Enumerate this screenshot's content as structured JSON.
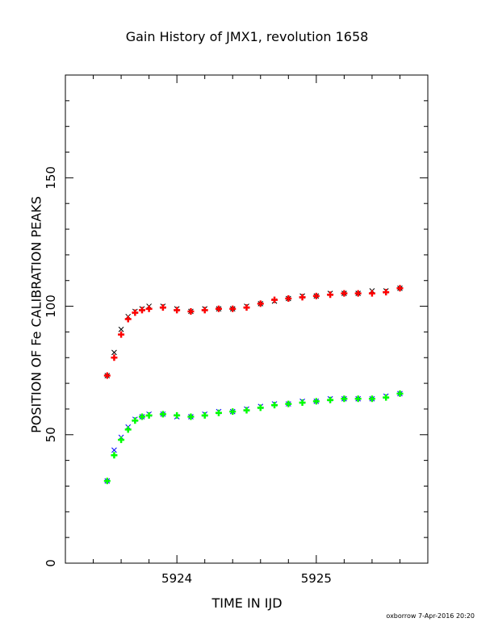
{
  "chart_data": {
    "type": "scatter",
    "title": "Gain History of JMX1, revolution 1658",
    "xlabel": "TIME IN IJD",
    "ylabel": "POSITION OF Fe CALIBRATION PEAKS",
    "xlim": [
      5923.2,
      5925.8
    ],
    "ylim": [
      0,
      190
    ],
    "x_ticks": [
      5924,
      5925
    ],
    "y_ticks": [
      0,
      50,
      100,
      150
    ],
    "grid": false,
    "series": [
      {
        "marker": "x",
        "color": "#000000",
        "x": [
          5923.5,
          5923.55,
          5923.6,
          5923.65,
          5923.7,
          5923.75,
          5923.8,
          5923.9,
          5924.0,
          5924.1,
          5924.2,
          5924.3,
          5924.4,
          5924.5,
          5924.6,
          5924.7,
          5924.8,
          5924.9,
          5925.0,
          5925.1,
          5925.2,
          5925.3,
          5925.4,
          5925.5,
          5925.6
        ],
        "y": [
          73,
          82,
          91,
          96,
          98,
          99,
          100,
          100,
          99,
          98,
          99,
          99,
          99,
          100,
          101,
          102,
          103,
          104,
          104,
          105,
          105,
          105,
          106,
          106,
          107
        ]
      },
      {
        "marker": "+",
        "color": "#ff0000",
        "x": [
          5923.5,
          5923.55,
          5923.6,
          5923.65,
          5923.7,
          5923.75,
          5923.8,
          5923.9,
          5924.0,
          5924.1,
          5924.2,
          5924.3,
          5924.4,
          5924.5,
          5924.6,
          5924.7,
          5924.8,
          5924.9,
          5925.0,
          5925.1,
          5925.2,
          5925.3,
          5925.4,
          5925.5,
          5925.6
        ],
        "y": [
          73,
          80,
          89,
          95,
          97.5,
          98.5,
          99,
          99.5,
          98.5,
          98,
          98.5,
          99,
          99,
          99.5,
          101,
          102.5,
          103,
          103.5,
          104,
          104.5,
          105,
          105,
          105,
          105.5,
          107
        ]
      },
      {
        "marker": "x",
        "color": "#0000ff",
        "x": [
          5923.5,
          5923.55,
          5923.6,
          5923.65,
          5923.7,
          5923.75,
          5923.8,
          5923.9,
          5924.0,
          5924.1,
          5924.2,
          5924.3,
          5924.4,
          5924.5,
          5924.6,
          5924.7,
          5924.8,
          5924.9,
          5925.0,
          5925.1,
          5925.2,
          5925.3,
          5925.4,
          5925.5,
          5925.6
        ],
        "y": [
          32,
          44,
          49,
          53,
          56,
          57,
          58,
          58,
          57,
          57,
          58,
          59,
          59,
          60,
          61,
          62,
          62,
          63,
          63,
          64,
          64,
          64,
          64,
          65,
          66
        ]
      },
      {
        "marker": "+",
        "color": "#00ff00",
        "x": [
          5923.5,
          5923.55,
          5923.6,
          5923.65,
          5923.7,
          5923.75,
          5923.8,
          5923.9,
          5924.0,
          5924.1,
          5924.2,
          5924.3,
          5924.4,
          5924.5,
          5924.6,
          5924.7,
          5924.8,
          5924.9,
          5925.0,
          5925.1,
          5925.2,
          5925.3,
          5925.4,
          5925.5,
          5925.6
        ],
        "y": [
          32,
          42,
          48,
          52,
          55.5,
          57,
          57.5,
          58,
          57.5,
          57,
          57.5,
          58.5,
          59,
          59.5,
          60.5,
          61.5,
          62,
          62.5,
          63,
          63.5,
          64,
          64,
          64,
          64.5,
          66
        ]
      }
    ]
  },
  "footer": {
    "text": "oxborrow  7-Apr-2016 20:20"
  }
}
